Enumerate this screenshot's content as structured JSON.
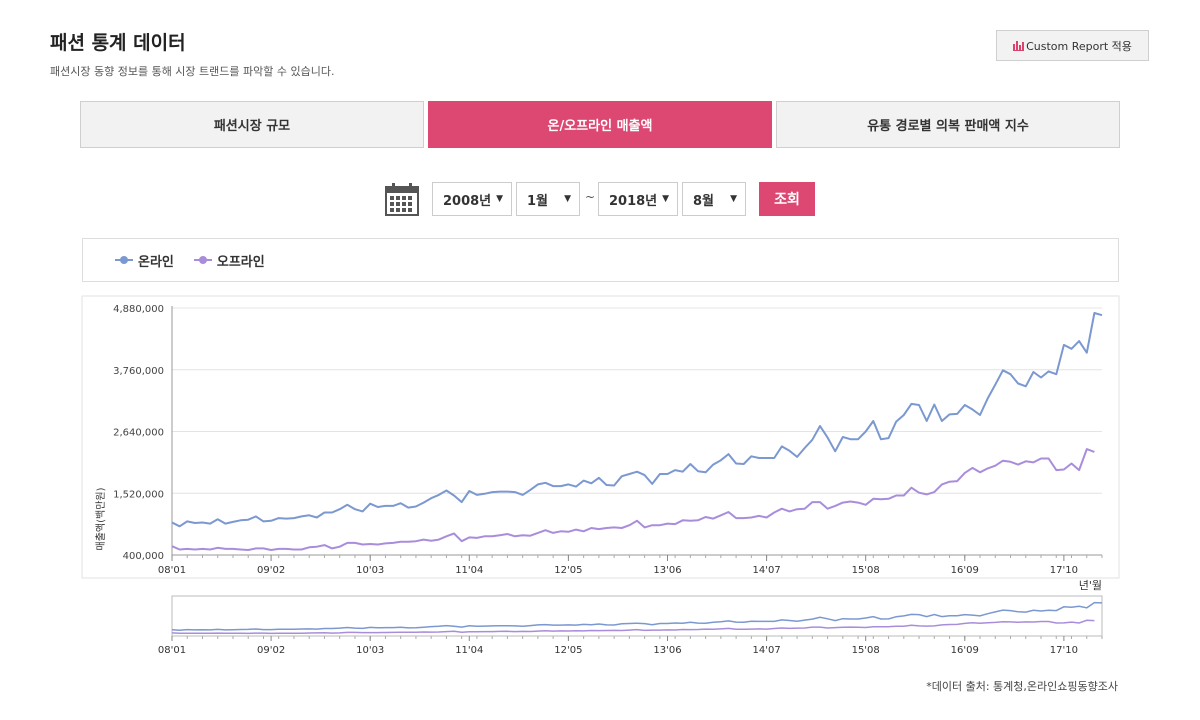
{
  "header": {
    "title": "패션 통계 데이터",
    "subtitle": "패션시장 동향 정보를 통해 시장 트랜드를 파악할 수 있습니다.",
    "custom_report_label": "Custom Report 적용"
  },
  "tabs": [
    {
      "label": "패션시장 규모",
      "active": false
    },
    {
      "label": "온/오프라인 매출액",
      "active": true
    },
    {
      "label": "유통 경로별 의복 판매액 지수",
      "active": false
    }
  ],
  "filters": {
    "start_year": "2008년",
    "start_month": "1월",
    "separator": "~",
    "end_year": "2018년",
    "end_month": "8월",
    "search_label": "조회"
  },
  "legend": [
    {
      "name": "온라인",
      "color": "#7b98d0"
    },
    {
      "name": "오프라인",
      "color": "#a98ddb"
    }
  ],
  "footnote": "*데이터 출처: 통계청,온라인쇼핑동향조사",
  "colors": {
    "accent": "#dd4873",
    "online": "#7b98d0",
    "offline": "#a98ddb"
  },
  "chart_data": {
    "type": "line",
    "ylabel": "매출액(백만원)",
    "xlabel": "년'월",
    "ylim": [
      400000,
      4880000
    ],
    "yticks": [
      "4,880,000",
      "3,760,000",
      "2,640,000",
      "1,520,000",
      "400,000"
    ],
    "ytick_values": [
      4880000,
      3760000,
      2640000,
      1520000,
      400000
    ],
    "xticks": [
      "08'01",
      "09'02",
      "10'03",
      "11'04",
      "12'05",
      "13'06",
      "14'07",
      "15'08",
      "16'09",
      "17'10"
    ],
    "xtick_index": [
      0,
      13,
      26,
      39,
      52,
      65,
      78,
      91,
      104,
      117
    ],
    "x_start": "2008-01",
    "grid": true,
    "series": [
      {
        "name": "온라인",
        "values": [
          990000,
          920000,
          1010000,
          980000,
          990000,
          970000,
          1050000,
          970000,
          1000000,
          1030000,
          1040000,
          1100000,
          1010000,
          1020000,
          1070000,
          1060000,
          1070000,
          1100000,
          1120000,
          1080000,
          1170000,
          1170000,
          1230000,
          1310000,
          1230000,
          1190000,
          1330000,
          1270000,
          1290000,
          1290000,
          1340000,
          1260000,
          1280000,
          1350000,
          1430000,
          1490000,
          1570000,
          1480000,
          1360000,
          1560000,
          1490000,
          1510000,
          1540000,
          1550000,
          1550000,
          1540000,
          1490000,
          1580000,
          1680000,
          1710000,
          1650000,
          1650000,
          1680000,
          1640000,
          1750000,
          1700000,
          1800000,
          1670000,
          1660000,
          1830000,
          1870000,
          1910000,
          1850000,
          1690000,
          1870000,
          1870000,
          1940000,
          1910000,
          2050000,
          1920000,
          1900000,
          2040000,
          2120000,
          2230000,
          2060000,
          2050000,
          2190000,
          2160000,
          2160000,
          2160000,
          2370000,
          2290000,
          2180000,
          2340000,
          2490000,
          2740000,
          2530000,
          2280000,
          2540000,
          2500000,
          2500000,
          2640000,
          2830000,
          2500000,
          2520000,
          2820000,
          2940000,
          3140000,
          3120000,
          2830000,
          3130000,
          2830000,
          2950000,
          2960000,
          3120000,
          3040000,
          2940000,
          3240000,
          3490000,
          3750000,
          3680000,
          3510000,
          3460000,
          3720000,
          3620000,
          3730000,
          3680000,
          4210000,
          4140000,
          4280000,
          4070000,
          4790000,
          4750000
        ]
      },
      {
        "name": "오프라인",
        "values": [
          560000,
          500000,
          510000,
          500000,
          510000,
          500000,
          530000,
          510000,
          510000,
          500000,
          490000,
          520000,
          520000,
          490000,
          510000,
          510000,
          500000,
          500000,
          540000,
          550000,
          580000,
          520000,
          550000,
          620000,
          620000,
          590000,
          600000,
          590000,
          610000,
          620000,
          640000,
          640000,
          650000,
          680000,
          660000,
          680000,
          740000,
          790000,
          650000,
          720000,
          710000,
          740000,
          740000,
          760000,
          780000,
          740000,
          760000,
          750000,
          800000,
          850000,
          800000,
          830000,
          820000,
          860000,
          830000,
          890000,
          870000,
          890000,
          900000,
          890000,
          940000,
          1020000,
          900000,
          940000,
          940000,
          970000,
          960000,
          1030000,
          1020000,
          1030000,
          1090000,
          1060000,
          1120000,
          1180000,
          1070000,
          1070000,
          1080000,
          1110000,
          1080000,
          1170000,
          1240000,
          1190000,
          1230000,
          1240000,
          1360000,
          1360000,
          1240000,
          1290000,
          1350000,
          1370000,
          1350000,
          1310000,
          1420000,
          1410000,
          1420000,
          1480000,
          1480000,
          1620000,
          1530000,
          1500000,
          1540000,
          1680000,
          1730000,
          1740000,
          1890000,
          1980000,
          1900000,
          1970000,
          2020000,
          2110000,
          2090000,
          2040000,
          2100000,
          2080000,
          2150000,
          2150000,
          1940000,
          1950000,
          2060000,
          1940000,
          2320000,
          2270000
        ]
      }
    ]
  }
}
